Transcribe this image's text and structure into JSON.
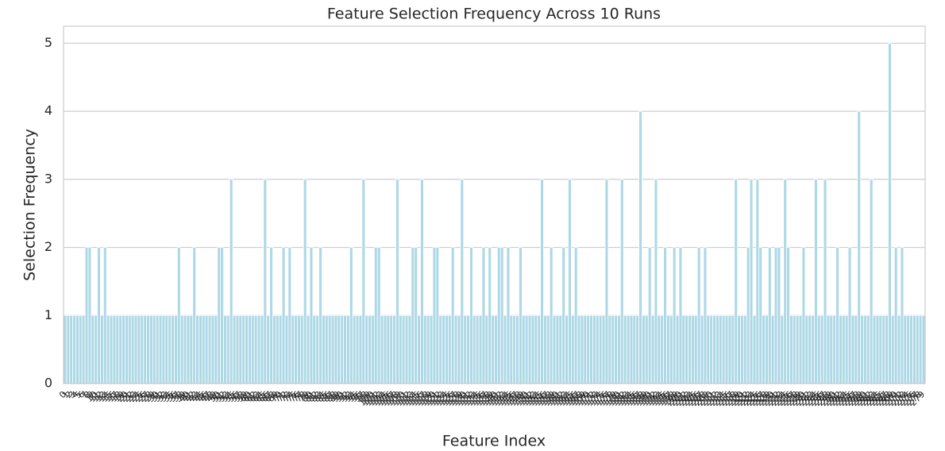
{
  "chart_data": {
    "type": "bar",
    "title": "Feature Selection Frequency Across 10 Runs",
    "x_label": "Feature Index",
    "y_label": "Selection Frequency",
    "color": "#add8e6",
    "grid": true,
    "ylim": [
      0,
      5.25
    ],
    "yticks": [
      0,
      1,
      2,
      3,
      4,
      5
    ],
    "categories": [
      0,
      1,
      2,
      3,
      4,
      5,
      6,
      7,
      8,
      9,
      10,
      11,
      12,
      13,
      14,
      15,
      16,
      17,
      18,
      19,
      20,
      21,
      22,
      23,
      24,
      25,
      26,
      27,
      28,
      29,
      30,
      31,
      32,
      33,
      34,
      35,
      36,
      37,
      38,
      39,
      40,
      41,
      42,
      43,
      44,
      45,
      46,
      47,
      48,
      49,
      50,
      51,
      52,
      53,
      54,
      55,
      56,
      57,
      58,
      59,
      60,
      61,
      62,
      63,
      64,
      65,
      66,
      67,
      68,
      69,
      70,
      71,
      72,
      73,
      74,
      75,
      76,
      77,
      78,
      79,
      80,
      81,
      82,
      83,
      84,
      85,
      86,
      87,
      88,
      89,
      90,
      91,
      92,
      93,
      94,
      95,
      96,
      97,
      98,
      99,
      100,
      101,
      102,
      103,
      104,
      105,
      106,
      107,
      108,
      109,
      110,
      111,
      112,
      113,
      114,
      115,
      116,
      117,
      118,
      119,
      120,
      121,
      122,
      123,
      124,
      125,
      126,
      127,
      128,
      129,
      130,
      131,
      132,
      133,
      134,
      135,
      136,
      137,
      138,
      139,
      140,
      141,
      142,
      143,
      144,
      145,
      146,
      147,
      148,
      149,
      150,
      151,
      152,
      153,
      154,
      155,
      156,
      157,
      158,
      159,
      160,
      161,
      162,
      163,
      164,
      165,
      166,
      167,
      168,
      169,
      170,
      171,
      172,
      173,
      174,
      175,
      176,
      177,
      178,
      179,
      180,
      181,
      182,
      183,
      184,
      185,
      186,
      187,
      188,
      189,
      190,
      191,
      192,
      193,
      194,
      195,
      196,
      197,
      198,
      199,
      200,
      201,
      202,
      203,
      204,
      205,
      206,
      207,
      208,
      209,
      210,
      211,
      212,
      213,
      214,
      215,
      216,
      217,
      218,
      219,
      220,
      221,
      222,
      223,
      224,
      225,
      226,
      227,
      228,
      229,
      230,
      231,
      232,
      233,
      234,
      235,
      236,
      237,
      238,
      239,
      240,
      241,
      242,
      243,
      244,
      245,
      246,
      247,
      248,
      249,
      250,
      251,
      252,
      253,
      254,
      255,
      256,
      257,
      258,
      259,
      260,
      261,
      262,
      263,
      264,
      265,
      266,
      267,
      268,
      269,
      270,
      271,
      272,
      273,
      274,
      275,
      276,
      277,
      278,
      279
    ],
    "values": [
      1,
      1,
      1,
      1,
      1,
      1,
      1,
      2,
      2,
      1,
      1,
      2,
      1,
      2,
      1,
      1,
      1,
      1,
      1,
      1,
      1,
      1,
      1,
      1,
      1,
      1,
      1,
      1,
      1,
      1,
      1,
      1,
      1,
      1,
      1,
      1,
      1,
      2,
      1,
      1,
      1,
      1,
      2,
      1,
      1,
      1,
      1,
      1,
      1,
      1,
      2,
      2,
      1,
      1,
      3,
      1,
      1,
      1,
      1,
      1,
      1,
      1,
      1,
      1,
      1,
      3,
      1,
      2,
      1,
      1,
      1,
      2,
      1,
      2,
      1,
      1,
      1,
      1,
      3,
      1,
      2,
      1,
      1,
      2,
      1,
      1,
      1,
      1,
      1,
      1,
      1,
      1,
      1,
      2,
      1,
      1,
      1,
      3,
      1,
      1,
      1,
      2,
      2,
      1,
      1,
      1,
      1,
      1,
      3,
      1,
      1,
      1,
      1,
      2,
      2,
      1,
      3,
      1,
      1,
      1,
      2,
      2,
      1,
      1,
      1,
      1,
      2,
      1,
      1,
      3,
      1,
      1,
      2,
      1,
      1,
      1,
      2,
      1,
      2,
      1,
      1,
      2,
      2,
      1,
      2,
      1,
      1,
      1,
      2,
      1,
      1,
      1,
      1,
      1,
      1,
      3,
      1,
      1,
      2,
      1,
      1,
      1,
      2,
      1,
      3,
      1,
      2,
      1,
      1,
      1,
      1,
      1,
      1,
      1,
      1,
      1,
      3,
      1,
      1,
      1,
      1,
      3,
      1,
      1,
      1,
      1,
      1,
      4,
      1,
      1,
      2,
      1,
      3,
      1,
      1,
      2,
      1,
      1,
      2,
      1,
      2,
      1,
      1,
      1,
      1,
      1,
      2,
      1,
      2,
      1,
      1,
      1,
      1,
      1,
      1,
      1,
      1,
      1,
      3,
      1,
      1,
      1,
      2,
      3,
      1,
      3,
      2,
      1,
      1,
      2,
      1,
      2,
      2,
      1,
      3,
      2,
      1,
      1,
      1,
      1,
      2,
      1,
      1,
      1,
      3,
      1,
      1,
      3,
      1,
      1,
      1,
      2,
      1,
      1,
      1,
      2,
      1,
      1,
      4,
      1,
      1,
      1,
      3,
      1,
      1,
      1,
      1,
      1,
      5,
      1,
      2,
      1,
      2,
      1,
      1,
      1,
      1,
      1,
      1,
      1
    ]
  }
}
